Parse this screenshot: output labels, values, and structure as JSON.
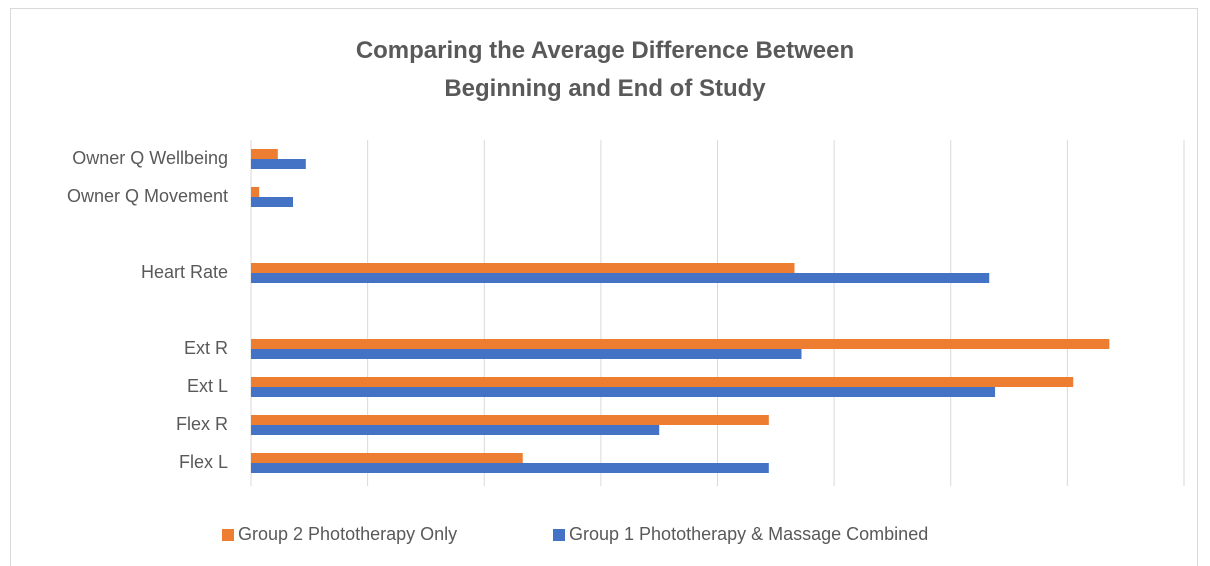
{
  "chart_data": {
    "type": "hbar",
    "title": "Comparing the Average Difference Between Beginning and End of Study",
    "categories": [
      "Owner Q Wellbeing",
      "Owner Q Movement",
      null,
      "Heart Rate",
      null,
      "Ext R",
      "Ext L",
      "Flex R",
      "Flex L"
    ],
    "series": [
      {
        "name": "Group 2 Phototherapy Only",
        "color": "#ED7D31",
        "values": [
          0.23,
          0.07,
          null,
          4.66,
          null,
          7.36,
          7.05,
          4.44,
          2.33
        ]
      },
      {
        "name": "Group 1 Phototherapy & Massage Combined",
        "color": "#4472C4",
        "values": [
          0.47,
          0.36,
          null,
          6.33,
          null,
          4.72,
          6.38,
          3.5,
          4.44
        ]
      }
    ],
    "xlim": [
      0,
      8
    ],
    "xticks": [
      0,
      1,
      2,
      3,
      4,
      5,
      6,
      7,
      8
    ],
    "grid": true,
    "legend": "bottom"
  }
}
